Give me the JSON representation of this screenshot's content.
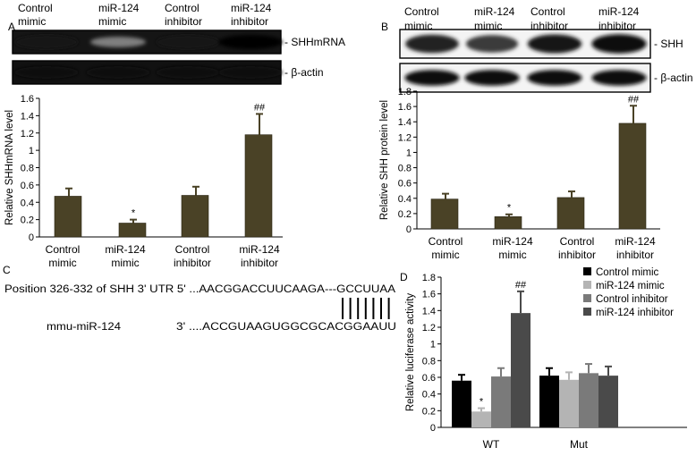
{
  "panels": {
    "A": {
      "letter": "A",
      "lanes": [
        "Control mimic",
        "miR-124 mimic",
        "Control inhibitor",
        "miR-124 inhibitor"
      ],
      "blot_labels": [
        "- SHHmRNA",
        "- β-actin"
      ],
      "band_intensity": [
        0.92,
        0.45,
        0.92,
        0.98
      ],
      "actin_intensity": [
        0.95,
        0.95,
        0.95,
        0.95
      ]
    },
    "B": {
      "letter": "B",
      "lanes": [
        "Control mimic",
        "miR-124 mimic",
        "Control inhibitor",
        "miR-124 inhibitor"
      ],
      "blot_labels": [
        "- SHH",
        "- β-actin"
      ],
      "band_intensity": [
        0.85,
        0.75,
        0.9,
        0.95
      ],
      "actin_intensity": [
        0.95,
        0.95,
        0.95,
        0.95
      ]
    },
    "C": {
      "letter": "C",
      "utr_label": "Position 326-332 of SHH 3' UTR 5' ...AACGGACCUUCAAGA---GCCUUAA",
      "mir_name": "mmu-miR-124",
      "mir_seq": "3'  ....ACCGUAAGUGGCGCACGGAAUU",
      "pair_count": 7
    },
    "D": {
      "letter": "D"
    }
  },
  "chart_data": [
    {
      "type": "bar",
      "panel": "A",
      "ylabel": "Relative SHHmRNA level",
      "ylim": [
        0,
        1.6
      ],
      "yticks": [
        "0",
        "0.2",
        "0.4",
        "0.6",
        "0.8",
        "1",
        "1.2",
        "1.4",
        "1.6"
      ],
      "categories": [
        [
          "Control",
          "mimic"
        ],
        [
          "miR-124",
          "mimic"
        ],
        [
          "Control",
          "inhibitor"
        ],
        [
          "miR-124",
          "inhibitor"
        ]
      ],
      "values": [
        0.47,
        0.16,
        0.48,
        1.18
      ],
      "errors": [
        0.09,
        0.04,
        0.1,
        0.24
      ],
      "annotations": [
        "",
        "*",
        "",
        "##"
      ],
      "color": "#4a4226"
    },
    {
      "type": "bar",
      "panel": "B",
      "ylabel": "Relative SHH protein level",
      "ylim": [
        0,
        1.8
      ],
      "yticks": [
        "0",
        "0.2",
        "0.4",
        "0.6",
        "0.8",
        "1",
        "1.2",
        "1.4",
        "1.6",
        "1.8"
      ],
      "categories": [
        [
          "Control",
          "mimic"
        ],
        [
          "miR-124",
          "mimic"
        ],
        [
          "Control",
          "inhibitor"
        ],
        [
          "miR-124",
          "inhibitor"
        ]
      ],
      "values": [
        0.39,
        0.16,
        0.41,
        1.38
      ],
      "errors": [
        0.07,
        0.03,
        0.08,
        0.23
      ],
      "annotations": [
        "",
        "*",
        "",
        "##"
      ],
      "color": "#4a4226"
    },
    {
      "type": "bar",
      "panel": "D",
      "ylabel": "Relative luciferase activity",
      "ylim": [
        0,
        1.8
      ],
      "yticks": [
        "0",
        "0.2",
        "0.4",
        "0.6",
        "0.8",
        "1",
        "1.2",
        "1.4",
        "1.6",
        "1.8"
      ],
      "categories": [
        "WT",
        "Mut"
      ],
      "legend_position": "top-right",
      "series": [
        {
          "name": "Control mimic",
          "color": "#000000",
          "values": [
            0.56,
            0.62
          ],
          "errors": [
            0.07,
            0.09
          ],
          "annotations": [
            "",
            ""
          ]
        },
        {
          "name": "miR-124 mimic",
          "color": "#b4b4b4",
          "values": [
            0.19,
            0.57
          ],
          "errors": [
            0.04,
            0.09
          ],
          "annotations": [
            "*",
            ""
          ]
        },
        {
          "name": "Control inhibitor",
          "color": "#7a7a7a",
          "values": [
            0.61,
            0.65
          ],
          "errors": [
            0.1,
            0.11
          ],
          "annotations": [
            "",
            ""
          ]
        },
        {
          "name": "miR-124 inhibitor",
          "color": "#4a4a4a",
          "values": [
            1.37,
            0.62
          ],
          "errors": [
            0.26,
            0.11
          ],
          "annotations": [
            "##",
            ""
          ]
        }
      ]
    }
  ]
}
